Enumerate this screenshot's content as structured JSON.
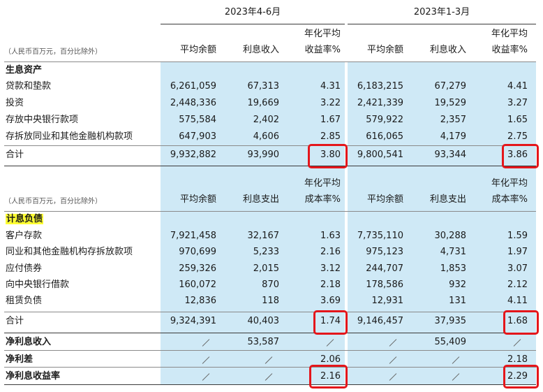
{
  "periods": [
    "2023年4-6月",
    "2023年1-3月"
  ],
  "unit_note": "（人民币百万元，百分比除外）",
  "assets": {
    "headers": [
      "平均余额",
      "利息收入",
      "年化平均",
      "收益率%",
      "平均余额",
      "利息收入",
      "年化平均",
      "收益率%"
    ],
    "section_title": "生息资产",
    "rows": [
      {
        "label": "贷款和垫款",
        "v": [
          "6,261,059",
          "67,313",
          "4.31",
          "6,183,215",
          "67,279",
          "4.41"
        ]
      },
      {
        "label": "投资",
        "v": [
          "2,448,336",
          "19,669",
          "3.22",
          "2,421,339",
          "19,529",
          "3.27"
        ]
      },
      {
        "label": "存放中央银行款项",
        "v": [
          "575,584",
          "2,402",
          "1.67",
          "579,922",
          "2,357",
          "1.65"
        ]
      },
      {
        "label": "存拆放同业和其他金融机构款项",
        "v": [
          "647,903",
          "4,606",
          "2.85",
          "616,065",
          "4,179",
          "2.75"
        ]
      }
    ],
    "total": {
      "label": "合计",
      "v": [
        "9,932,882",
        "93,990",
        "3.80",
        "9,800,541",
        "93,344",
        "3.86"
      ]
    }
  },
  "liabilities": {
    "headers": [
      "平均余额",
      "利息支出",
      "年化平均",
      "成本率%",
      "平均余额",
      "利息支出",
      "年化平均",
      "成本率%"
    ],
    "section_title": "计息负债",
    "rows": [
      {
        "label": "客户存款",
        "v": [
          "7,921,458",
          "32,167",
          "1.63",
          "7,735,110",
          "30,288",
          "1.59"
        ]
      },
      {
        "label": "同业和其他金融机构存拆放款项",
        "v": [
          "970,699",
          "5,233",
          "2.16",
          "975,123",
          "4,731",
          "1.97"
        ]
      },
      {
        "label": "应付债券",
        "v": [
          "259,326",
          "2,015",
          "3.12",
          "244,707",
          "1,853",
          "3.07"
        ]
      },
      {
        "label": "向中央银行借款",
        "v": [
          "160,072",
          "870",
          "2.18",
          "178,586",
          "932",
          "2.12"
        ]
      },
      {
        "label": "租赁负债",
        "v": [
          "12,836",
          "118",
          "3.69",
          "12,931",
          "131",
          "4.11"
        ]
      }
    ],
    "total": {
      "label": "合计",
      "v": [
        "9,324,391",
        "40,403",
        "1.74",
        "9,146,457",
        "37,935",
        "1.68"
      ]
    }
  },
  "summary": [
    {
      "label": "净利息收入",
      "v": [
        "",
        "53,587",
        "",
        "",
        "55,409",
        ""
      ]
    },
    {
      "label": "净利差",
      "v": [
        "",
        "",
        "2.06",
        "",
        "",
        "2.18"
      ]
    },
    {
      "label": "净利息收益率",
      "v": [
        "",
        "",
        "2.16",
        "",
        "",
        "2.29"
      ]
    }
  ],
  "colors": {
    "shade": "#cfe9f6",
    "highlight_box": "#e4161b",
    "section_highlight": "#ffff33"
  }
}
